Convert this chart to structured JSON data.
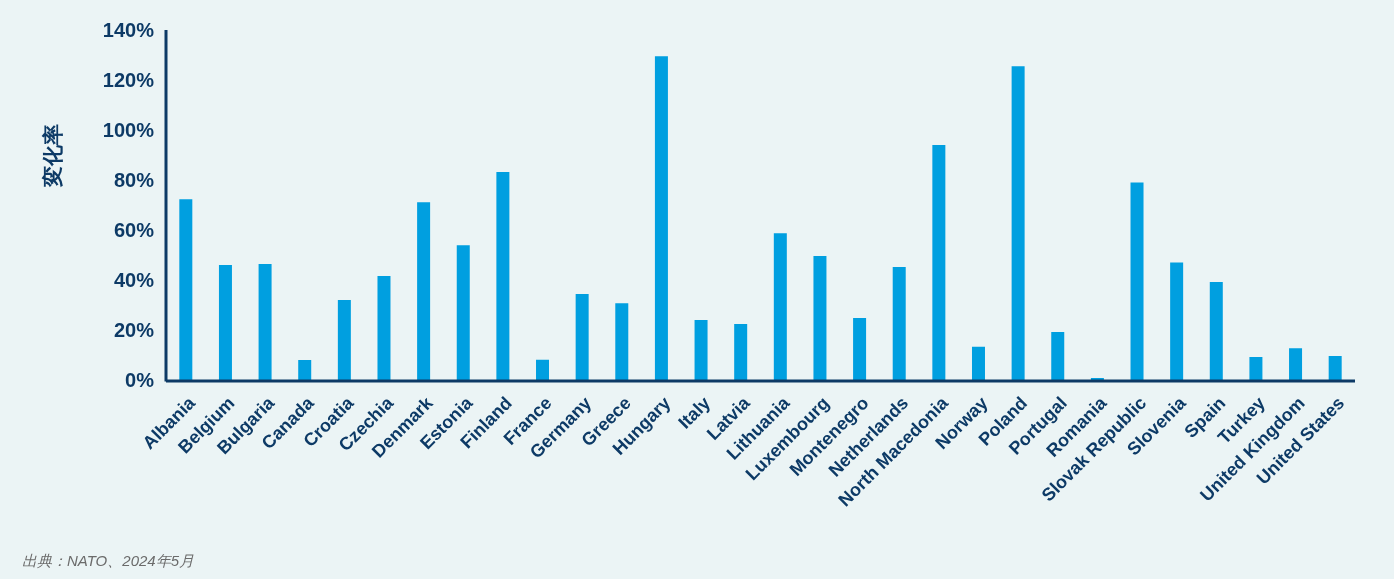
{
  "chart_data": {
    "type": "bar",
    "ylabel": "変化率",
    "categories": [
      "Albania",
      "Belgium",
      "Bulgaria",
      "Canada",
      "Croatia",
      "Czechia",
      "Denmark",
      "Estonia",
      "Finland",
      "France",
      "Germany",
      "Greece",
      "Hungary",
      "Italy",
      "Latvia",
      "Lithuania",
      "Luxembourg",
      "Montenegro",
      "Netherlands",
      "North Macedonia",
      "Norway",
      "Poland",
      "Portugal",
      "Romania",
      "Slovak Republic",
      "Slovenia",
      "Spain",
      "Turkey",
      "United Kingdom",
      "United States"
    ],
    "values": [
      72.3,
      46,
      46.4,
      8,
      32,
      41.6,
      71.1,
      53.9,
      83.2,
      8.1,
      34.4,
      30.7,
      129.5,
      24,
      22.4,
      58.7,
      49.6,
      24.8,
      45.2,
      94,
      13.3,
      125.5,
      19.2,
      0.8,
      79,
      47,
      39.2,
      9.2,
      12.7,
      9.6
    ],
    "color": "#009fe0",
    "ylim": [
      0,
      140
    ],
    "yticks": [
      {
        "value": 0,
        "label": "0%"
      },
      {
        "value": 20,
        "label": "20%"
      },
      {
        "value": 40,
        "label": "40%"
      },
      {
        "value": 60,
        "label": "60%"
      },
      {
        "value": 80,
        "label": "80%"
      },
      {
        "value": 100,
        "label": "100%"
      },
      {
        "value": 120,
        "label": "120%"
      },
      {
        "value": 140,
        "label": "140%"
      }
    ],
    "annotations": [
      "出典：NATO、2024年5月"
    ]
  }
}
